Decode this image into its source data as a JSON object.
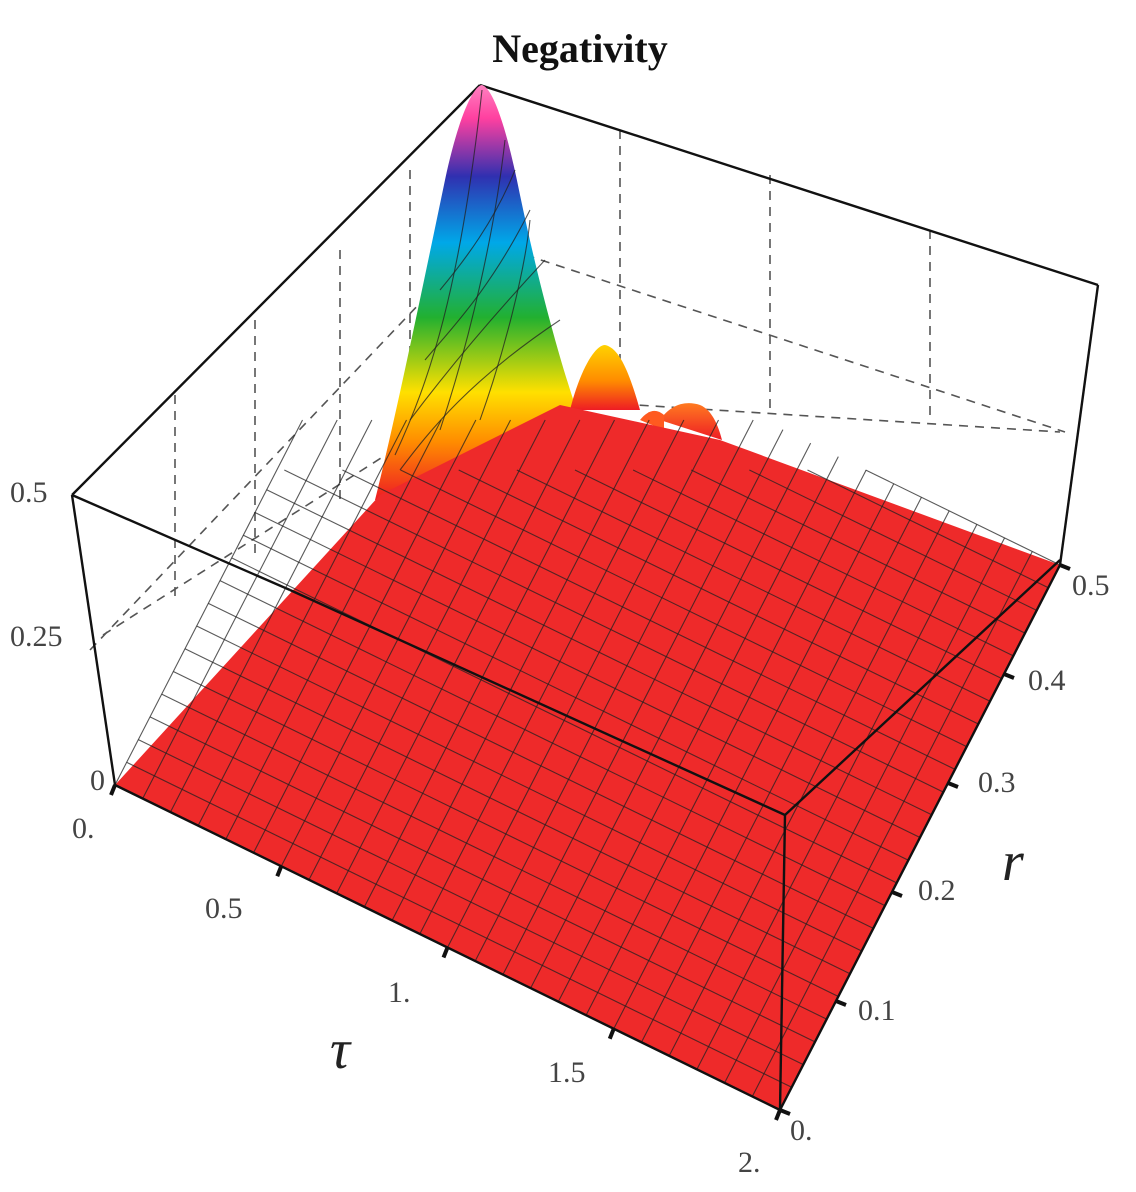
{
  "chart_data": {
    "type": "surface3d",
    "title": "Negativity",
    "x_axis": {
      "label": "τ",
      "range": [
        0,
        2
      ],
      "ticks": [
        "0.",
        "0.5",
        "1.",
        "1.5",
        "2."
      ]
    },
    "y_axis": {
      "label": "r",
      "range": [
        0,
        0.5
      ],
      "ticks": [
        "0.",
        "0.1",
        "0.2",
        "0.3",
        "0.4",
        "0.5"
      ]
    },
    "z_axis": {
      "label": "",
      "range": [
        0,
        0.5
      ],
      "ticks": [
        "0",
        "0.25",
        "0.5"
      ]
    },
    "surface_features": [
      {
        "tau": 0.1,
        "r": 0.5,
        "value": 0.5,
        "note": "main peak"
      },
      {
        "tau": 0.35,
        "r": 0.5,
        "value": 0.12
      },
      {
        "tau": 0.6,
        "r": 0.5,
        "value": 0.05
      }
    ],
    "colormap": [
      "#ee1c24",
      "#ff8c00",
      "#ffe000",
      "#22b030",
      "#00a8e8",
      "#3030b0",
      "#ff40a0"
    ],
    "grid": true
  }
}
